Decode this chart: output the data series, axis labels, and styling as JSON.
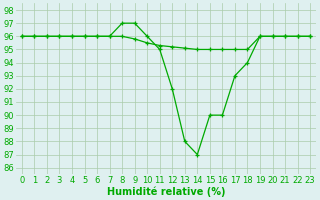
{
  "xlabel": "Humidité relative (%)",
  "bg_color": "#dff0f0",
  "grid_color": "#aaccaa",
  "line_color": "#00aa00",
  "xlim": [
    -0.5,
    23.5
  ],
  "ylim": [
    85.5,
    98.5
  ],
  "yticks": [
    86,
    87,
    88,
    89,
    90,
    91,
    92,
    93,
    94,
    95,
    96,
    97,
    98
  ],
  "xticks": [
    0,
    1,
    2,
    3,
    4,
    5,
    6,
    7,
    8,
    9,
    10,
    11,
    12,
    13,
    14,
    15,
    16,
    17,
    18,
    19,
    20,
    21,
    22,
    23
  ],
  "series1_x": [
    0,
    1,
    2,
    3,
    4,
    5,
    6,
    7,
    8,
    9,
    10,
    11,
    12,
    13,
    14,
    15,
    16,
    17,
    18,
    19,
    20,
    21,
    22,
    23
  ],
  "series1_y": [
    96,
    96,
    96,
    96,
    96,
    96,
    96,
    96,
    97,
    97,
    96,
    95,
    92,
    88,
    87,
    90,
    90,
    93,
    94,
    96,
    96,
    96,
    96,
    96
  ],
  "series2_x": [
    0,
    1,
    2,
    3,
    4,
    5,
    6,
    7,
    8,
    9,
    10,
    11,
    12,
    13,
    14,
    15,
    16,
    17,
    18,
    19,
    20,
    21,
    22,
    23
  ],
  "series2_y": [
    96,
    96,
    96,
    96,
    96,
    96,
    96,
    96,
    96,
    95.8,
    95.5,
    95.3,
    95.2,
    95.1,
    95,
    95,
    95,
    95,
    95,
    96,
    96,
    96,
    96,
    96
  ],
  "xlabel_fontsize": 7,
  "tick_fontsize": 6
}
